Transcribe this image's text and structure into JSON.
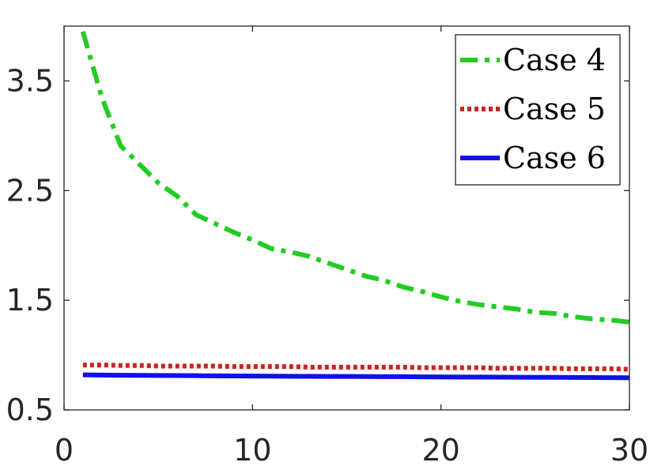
{
  "chart_data": {
    "type": "line",
    "title": "",
    "xlabel": "",
    "ylabel": "",
    "xlim": [
      0,
      30
    ],
    "ylim": [
      0.5,
      4.0
    ],
    "xticks": [
      0,
      10,
      20,
      30
    ],
    "yticks": [
      0.5,
      1.5,
      2.5,
      3.5
    ],
    "xtick_labels": [
      "0",
      "10",
      "20",
      "30"
    ],
    "ytick_labels": [
      "0.5",
      "1.5",
      "2.5",
      "3.5"
    ],
    "grid": false,
    "legend_position": "top-right",
    "x": [
      1,
      2,
      3,
      4,
      5,
      6,
      7,
      8,
      9,
      10,
      11,
      12,
      13,
      14,
      15,
      16,
      17,
      18,
      19,
      20,
      21,
      22,
      23,
      24,
      25,
      26,
      27,
      28,
      29,
      30
    ],
    "series": [
      {
        "name": "Case 4",
        "color": "#22cc22",
        "dash": "dash-dot",
        "values": [
          3.95,
          3.35,
          2.91,
          2.74,
          2.57,
          2.45,
          2.28,
          2.2,
          2.12,
          2.05,
          1.97,
          1.94,
          1.9,
          1.84,
          1.78,
          1.72,
          1.68,
          1.62,
          1.58,
          1.53,
          1.49,
          1.46,
          1.44,
          1.42,
          1.39,
          1.38,
          1.35,
          1.33,
          1.32,
          1.3
        ]
      },
      {
        "name": "Case 5",
        "color": "#cc2222",
        "dash": "dotted",
        "values": [
          0.91,
          0.91,
          0.905,
          0.905,
          0.9,
          0.9,
          0.9,
          0.9,
          0.895,
          0.895,
          0.895,
          0.895,
          0.89,
          0.89,
          0.89,
          0.89,
          0.89,
          0.89,
          0.885,
          0.885,
          0.885,
          0.885,
          0.88,
          0.88,
          0.88,
          0.88,
          0.875,
          0.875,
          0.875,
          0.87
        ]
      },
      {
        "name": "Case 6",
        "color": "#1010ee",
        "dash": "solid",
        "values": [
          0.82,
          0.818,
          0.816,
          0.815,
          0.814,
          0.813,
          0.812,
          0.811,
          0.81,
          0.809,
          0.808,
          0.807,
          0.806,
          0.805,
          0.805,
          0.804,
          0.803,
          0.803,
          0.802,
          0.801,
          0.8,
          0.8,
          0.799,
          0.798,
          0.797,
          0.797,
          0.796,
          0.795,
          0.794,
          0.793
        ]
      }
    ]
  }
}
